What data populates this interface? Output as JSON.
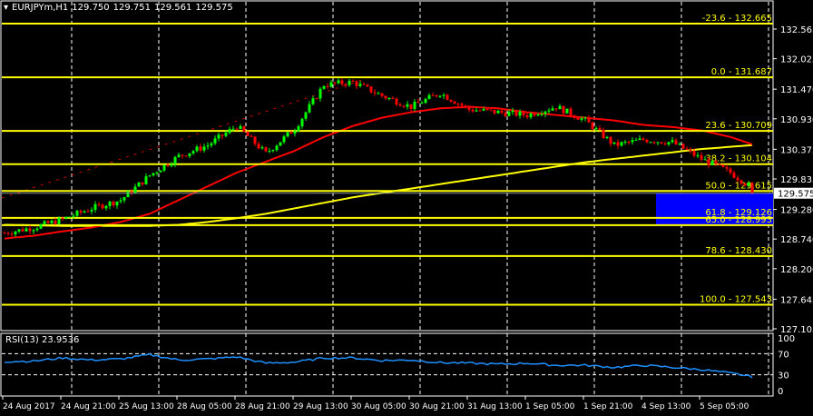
{
  "header": {
    "symbol": "EURJPYm,H1",
    "open": "129.750",
    "high": "129.751",
    "low": "129.561",
    "close": "129.575"
  },
  "colors": {
    "background": "#000000",
    "bull": "#00ff00",
    "bear": "#ff0000",
    "fib": "#ffff00",
    "ma_fast": "#ff0000",
    "ma_slow": "#ffff00",
    "rsi": "#1e90ff",
    "zone": "#0000ff",
    "grid": "#ffffff"
  },
  "chart_data": [
    {
      "type": "candlestick",
      "title": "EURJPYm,H1",
      "ylim": [
        127.0,
        132.7
      ],
      "price_ticks": [
        "132.565",
        "132.025",
        "131.470",
        "130.930",
        "130.375",
        "129.835",
        "129.280",
        "128.740",
        "128.200",
        "127.645",
        "127.105"
      ],
      "time_ticks": [
        "24 Aug 2017",
        "24 Aug 21:00",
        "25 Aug 13:00",
        "28 Aug 05:00",
        "28 Aug 21:00",
        "29 Aug 13:00",
        "30 Aug 05:00",
        "30 Aug 21:00",
        "31 Aug 13:00",
        "1 Sep 05:00",
        "1 Sep 21:00",
        "4 Sep 13:00",
        "5 Sep 05:00"
      ],
      "current_price": "129.575",
      "close_samples": [
        128.85,
        128.95,
        129.1,
        129.3,
        129.45,
        129.9,
        130.25,
        130.45,
        130.8,
        130.3,
        130.75,
        131.55,
        131.6,
        131.35,
        131.15,
        131.4,
        131.1,
        131.05,
        131.0,
        131.15,
        130.9,
        130.45,
        130.55,
        130.5,
        130.2,
        129.95,
        129.575
      ],
      "ma_fast_samples": [
        128.75,
        128.8,
        128.88,
        128.95,
        129.05,
        129.2,
        129.45,
        129.7,
        129.95,
        130.15,
        130.35,
        130.6,
        130.8,
        130.95,
        131.05,
        131.12,
        131.15,
        131.12,
        131.05,
        131.0,
        130.95,
        130.9,
        130.82,
        130.78,
        130.72,
        130.6,
        130.42
      ],
      "ma_slow_samples": [
        129.0,
        128.99,
        128.98,
        128.98,
        128.98,
        128.98,
        129.0,
        129.05,
        129.12,
        129.2,
        129.3,
        129.4,
        129.5,
        129.58,
        129.66,
        129.74,
        129.82,
        129.9,
        129.98,
        130.06,
        130.14,
        130.2,
        130.26,
        130.32,
        130.38,
        130.42,
        130.46
      ],
      "fibonacci": [
        {
          "label": "-23.6 - 132.665",
          "price": 132.665
        },
        {
          "label": "0.0 - 131.687",
          "price": 131.687
        },
        {
          "label": "23.6 - 130.709",
          "price": 130.709
        },
        {
          "label": "38.2 - 130.104",
          "price": 130.104
        },
        {
          "label": "50.0 - 129.615",
          "price": 129.615
        },
        {
          "label": "61.8 - 129.126",
          "price": 129.126
        },
        {
          "label": "65.0 - 128.993",
          "price": 128.993
        },
        {
          "label": "78.6 - 128.430",
          "price": 128.43
        },
        {
          "label": "100.0 - 127.543",
          "price": 127.543
        }
      ],
      "zone": {
        "from": 129.575,
        "to": 128.993
      }
    },
    {
      "type": "line",
      "title": "RSI(13) 23.9536",
      "ylim": [
        0,
        100
      ],
      "ticks": [
        "100",
        "70",
        "30",
        "0"
      ],
      "levels": [
        70,
        30
      ],
      "samples": [
        55,
        56,
        62,
        58,
        60,
        68,
        58,
        60,
        64,
        52,
        54,
        62,
        62,
        57,
        58,
        53,
        52,
        50,
        52,
        48,
        48,
        44,
        48,
        44,
        40,
        33,
        24
      ]
    }
  ]
}
